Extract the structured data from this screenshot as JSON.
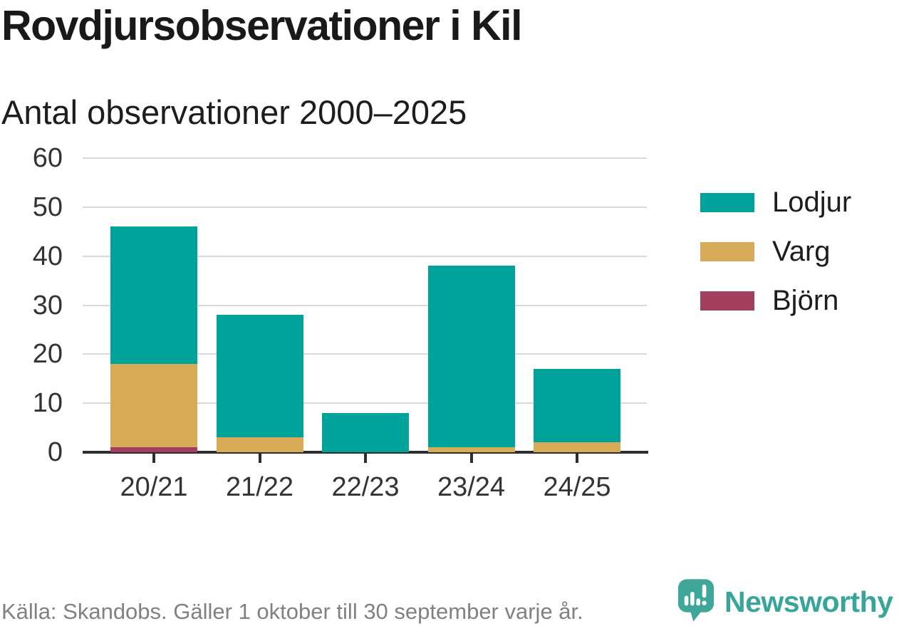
{
  "header": {
    "title": "Rovdjursobservationer i Kil",
    "subtitle": "Antal observationer 2000–2025"
  },
  "chart_data": {
    "type": "bar",
    "stacked": true,
    "title": "Rovdjursobservationer i Kil",
    "subtitle": "Antal observationer 2000–2025",
    "categories": [
      "20/21",
      "21/22",
      "22/23",
      "23/24",
      "24/25"
    ],
    "series": [
      {
        "name": "Lodjur",
        "color": "#00a399",
        "values": [
          28,
          25,
          8,
          37,
          15
        ]
      },
      {
        "name": "Varg",
        "color": "#d7ab58",
        "values": [
          17,
          3,
          0,
          1,
          2
        ]
      },
      {
        "name": "Björn",
        "color": "#a23f5e",
        "values": [
          1,
          0,
          0,
          0,
          0
        ]
      }
    ],
    "stack_order_bottom_to_top": [
      "Björn",
      "Varg",
      "Lodjur"
    ],
    "totals": [
      46,
      28,
      8,
      38,
      17
    ],
    "ylim": [
      0,
      60
    ],
    "yticks": [
      0,
      10,
      20,
      30,
      40,
      50,
      60
    ],
    "grid": true,
    "legend_position": "right"
  },
  "footer": {
    "source": "Källa: Skandobs. Gäller 1 oktober till 30 september varje år.",
    "brand": "Newsworthy"
  },
  "colors": {
    "axis": "#2d2d2d",
    "grid": "#d9d9d9",
    "title_text": "#191919",
    "tick_label_text": "#333333",
    "footer_text": "#7f8185",
    "logo_bubble": "#3fa69a",
    "logo_wordmark": "#38a59a"
  }
}
